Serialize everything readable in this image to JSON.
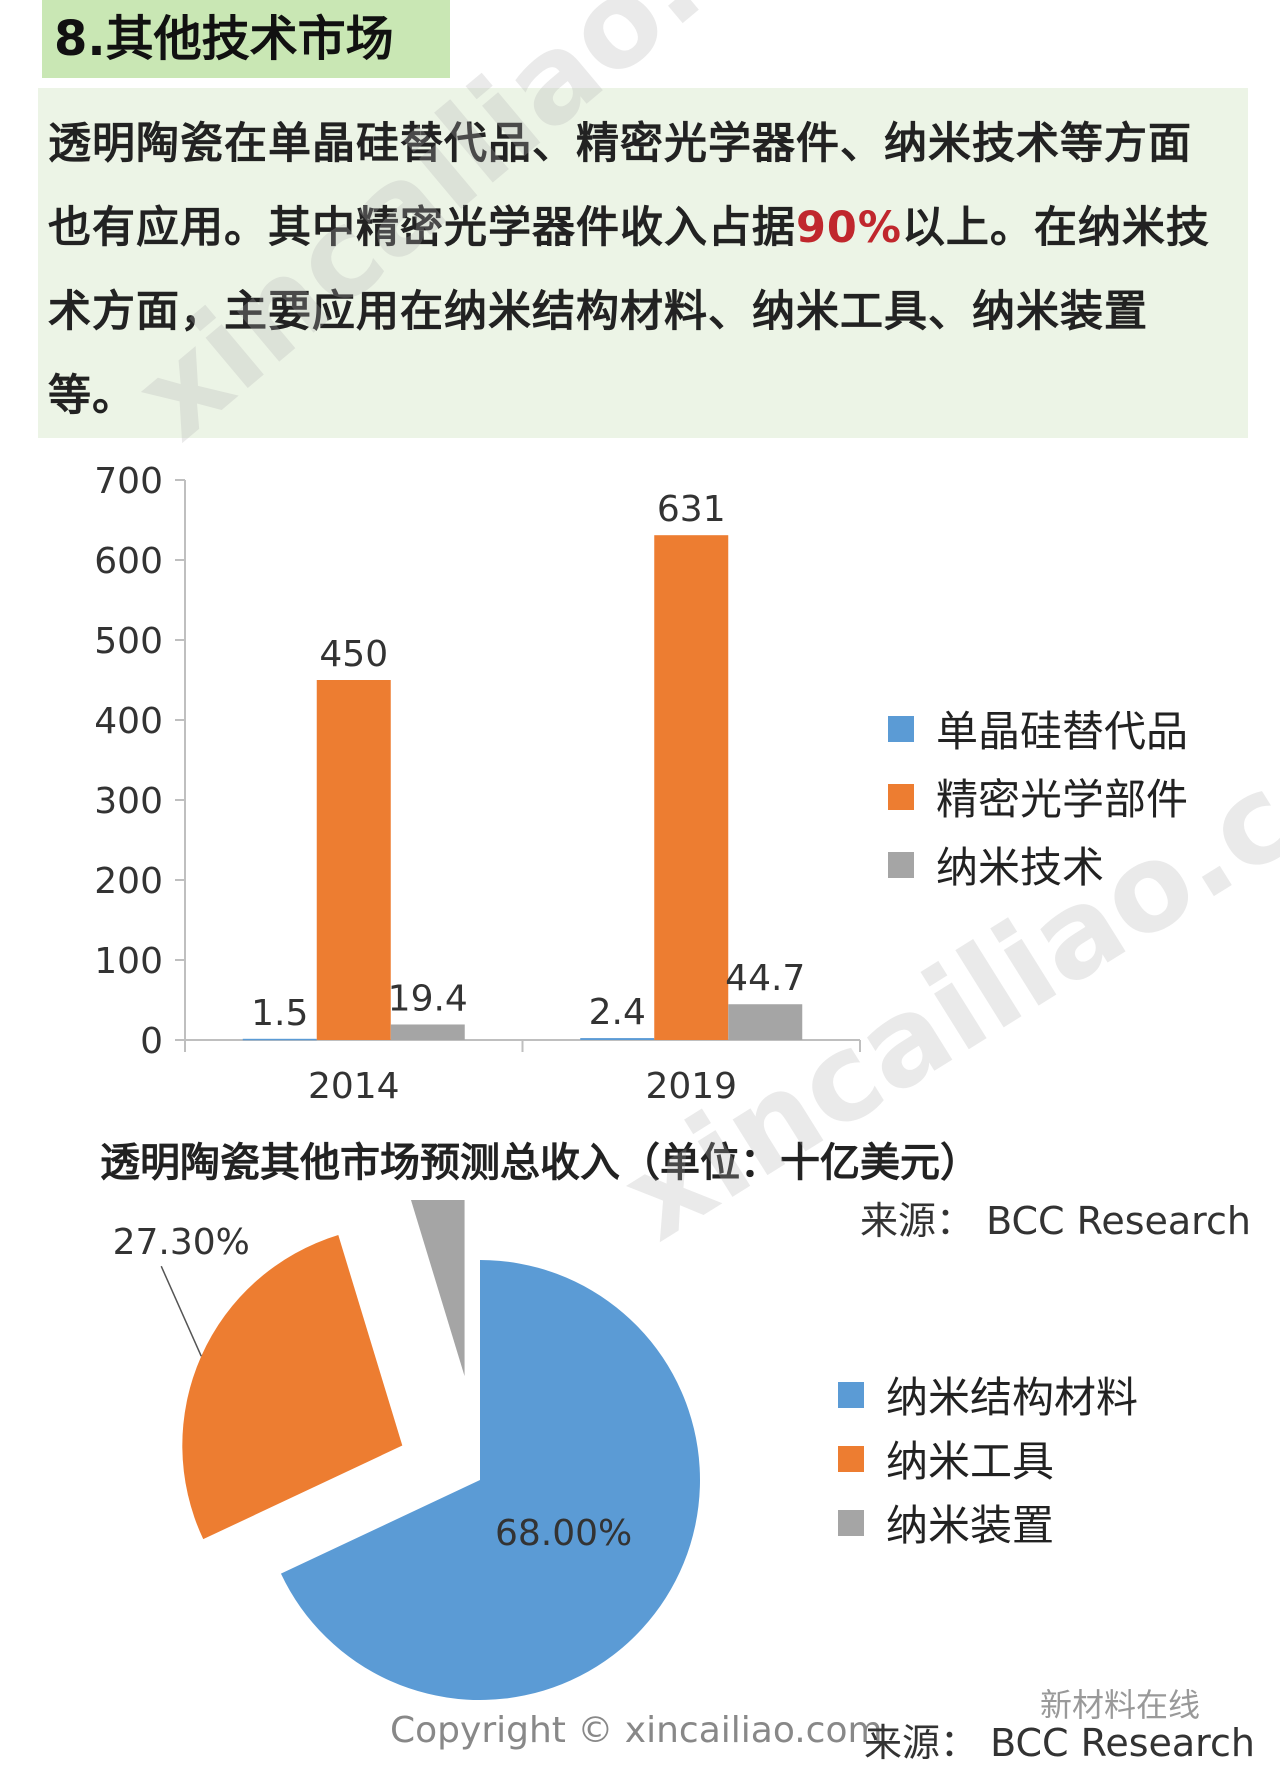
{
  "section_title": "8.其他技术市场",
  "intro": {
    "text_before": "透明陶瓷在单晶硅替代品、精密光学器件、纳米技术等方面也有应用。其中精密光学器件收入占据",
    "highlight": "90%",
    "text_after": "以上。在纳米技术方面，主要应用在纳米结构材料、纳米工具、纳米装置等。"
  },
  "colors": {
    "blue": "#5b9bd5",
    "orange": "#ed7d31",
    "gray": "#a5a5a5",
    "highlight": "#c0272d"
  },
  "chart_data": [
    {
      "type": "bar",
      "categories": [
        "2014",
        "2019"
      ],
      "series": [
        {
          "name": "单晶硅替代品",
          "values": [
            1.5,
            2.4
          ]
        },
        {
          "name": "精密光学部件",
          "values": [
            450,
            631
          ]
        },
        {
          "name": "纳米技术",
          "values": [
            19.4,
            44.7
          ]
        }
      ],
      "data_labels": [
        [
          "1.5",
          "2.4"
        ],
        [
          "450",
          "631"
        ],
        [
          "19.4",
          "44.7"
        ]
      ],
      "ylim": [
        0,
        700
      ],
      "yticks": [
        "700",
        "600",
        "500",
        "400",
        "300",
        "200",
        "100",
        "0"
      ],
      "title": "透明陶瓷其他市场预测总收入（单位：十亿美元）",
      "source": "来源： BCC Research",
      "legend_position": "right"
    },
    {
      "type": "pie",
      "categories": [
        "纳米结构材料",
        "纳米工具",
        "纳米装置"
      ],
      "values": [
        68.0,
        27.3,
        4.7
      ],
      "data_labels": [
        "68.00%",
        "27.30%",
        ""
      ],
      "source": "来源： BCC Research",
      "legend_position": "right"
    }
  ],
  "watermark": "xincailiao.com",
  "copyright": "Copyright © xincailiao.com",
  "wechat_badge": "新材料在线"
}
